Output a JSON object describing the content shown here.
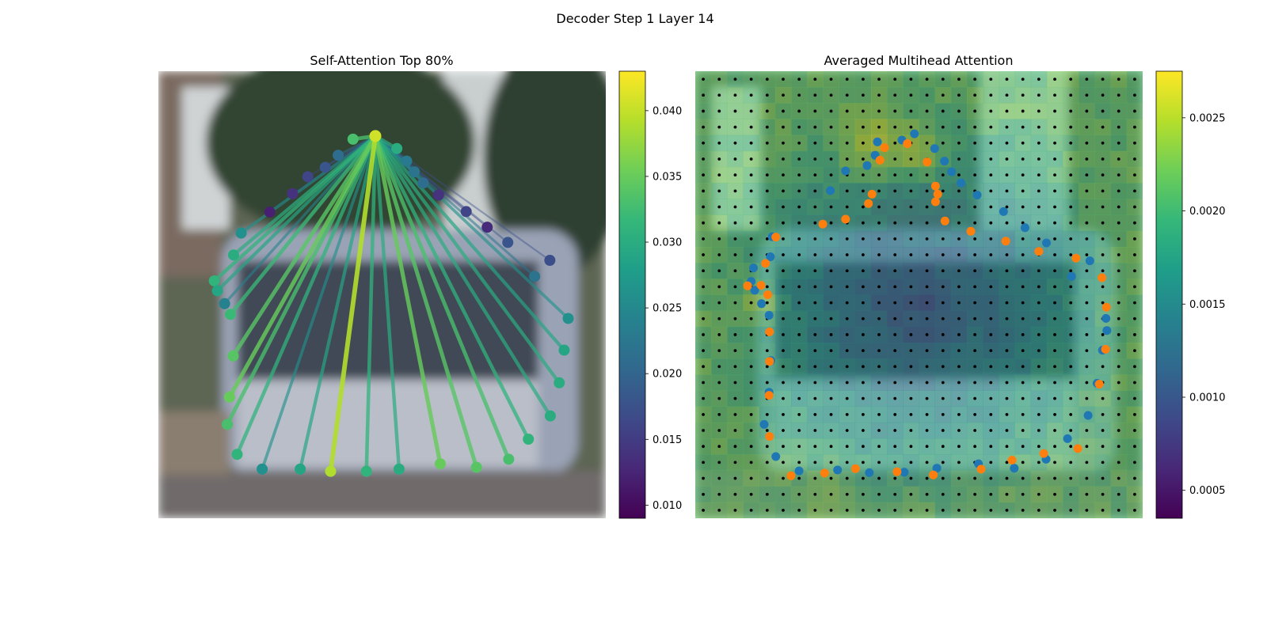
{
  "figure": {
    "suptitle": "Decoder Step 1 Layer 14"
  },
  "colors": {
    "viridis": [
      "#440154",
      "#482878",
      "#3e4a89",
      "#31688e",
      "#26828e",
      "#1f9e89",
      "#35b779",
      "#6ece58",
      "#b5de2b",
      "#fde725"
    ],
    "series_blue": "#1f77b4",
    "series_orange": "#ff7f0e",
    "grid_dot": "#000000"
  },
  "chart_data": [
    {
      "type": "scatter",
      "title": "Self-Attention Top 80%",
      "background": "blurred photo of a tram on a city street",
      "query_point": {
        "x": 0.485,
        "y": 0.145
      },
      "colorbar": {
        "range": [
          0.009,
          0.043
        ],
        "ticks": [
          "0.010",
          "0.015",
          "0.020",
          "0.025",
          "0.030",
          "0.035",
          "0.040"
        ],
        "tick_values": [
          0.01,
          0.015,
          0.02,
          0.025,
          0.03,
          0.035,
          0.04
        ]
      },
      "points": [
        {
          "x": 0.435,
          "y": 0.152,
          "w": 0.033
        },
        {
          "x": 0.402,
          "y": 0.188,
          "w": 0.021
        },
        {
          "x": 0.373,
          "y": 0.215,
          "w": 0.018
        },
        {
          "x": 0.334,
          "y": 0.236,
          "w": 0.016
        },
        {
          "x": 0.3,
          "y": 0.274,
          "w": 0.014
        },
        {
          "x": 0.249,
          "y": 0.315,
          "w": 0.012
        },
        {
          "x": 0.185,
          "y": 0.362,
          "w": 0.026
        },
        {
          "x": 0.168,
          "y": 0.411,
          "w": 0.03
        },
        {
          "x": 0.125,
          "y": 0.469,
          "w": 0.031
        },
        {
          "x": 0.132,
          "y": 0.491,
          "w": 0.029
        },
        {
          "x": 0.148,
          "y": 0.52,
          "w": 0.024
        },
        {
          "x": 0.161,
          "y": 0.544,
          "w": 0.032
        },
        {
          "x": 0.167,
          "y": 0.637,
          "w": 0.034
        },
        {
          "x": 0.159,
          "y": 0.729,
          "w": 0.035
        },
        {
          "x": 0.154,
          "y": 0.79,
          "w": 0.033
        },
        {
          "x": 0.176,
          "y": 0.857,
          "w": 0.031
        },
        {
          "x": 0.232,
          "y": 0.89,
          "w": 0.026
        },
        {
          "x": 0.317,
          "y": 0.89,
          "w": 0.029
        },
        {
          "x": 0.385,
          "y": 0.895,
          "w": 0.039
        },
        {
          "x": 0.465,
          "y": 0.895,
          "w": 0.031
        },
        {
          "x": 0.538,
          "y": 0.89,
          "w": 0.03
        },
        {
          "x": 0.63,
          "y": 0.878,
          "w": 0.035
        },
        {
          "x": 0.711,
          "y": 0.886,
          "w": 0.034
        },
        {
          "x": 0.783,
          "y": 0.868,
          "w": 0.033
        },
        {
          "x": 0.827,
          "y": 0.823,
          "w": 0.031
        },
        {
          "x": 0.876,
          "y": 0.771,
          "w": 0.03
        },
        {
          "x": 0.896,
          "y": 0.697,
          "w": 0.03
        },
        {
          "x": 0.907,
          "y": 0.624,
          "w": 0.029
        },
        {
          "x": 0.916,
          "y": 0.553,
          "w": 0.026
        },
        {
          "x": 0.875,
          "y": 0.423,
          "w": 0.017
        },
        {
          "x": 0.841,
          "y": 0.459,
          "w": 0.022
        },
        {
          "x": 0.781,
          "y": 0.383,
          "w": 0.018
        },
        {
          "x": 0.735,
          "y": 0.349,
          "w": 0.013
        },
        {
          "x": 0.688,
          "y": 0.314,
          "w": 0.016
        },
        {
          "x": 0.626,
          "y": 0.277,
          "w": 0.014
        },
        {
          "x": 0.592,
          "y": 0.25,
          "w": 0.021
        },
        {
          "x": 0.572,
          "y": 0.225,
          "w": 0.022
        },
        {
          "x": 0.555,
          "y": 0.201,
          "w": 0.023
        },
        {
          "x": 0.533,
          "y": 0.173,
          "w": 0.03
        }
      ]
    },
    {
      "type": "heatmap",
      "title": "Averaged Multihead Attention",
      "background": "blurred photo of a tram on a city street",
      "grid": {
        "cols": 28,
        "rows": 28
      },
      "colorbar": {
        "range": [
          0.00035,
          0.00275
        ],
        "ticks": [
          "0.0005",
          "0.0010",
          "0.0015",
          "0.0020",
          "0.0025"
        ],
        "tick_values": [
          0.0005,
          0.001,
          0.0015,
          0.002,
          0.0025
        ]
      },
      "hotspots": [
        {
          "x": 0.4,
          "y": 0.16,
          "r": 0.12,
          "v": 0.00265
        },
        {
          "x": 0.5,
          "y": 0.18,
          "r": 0.08,
          "v": 0.0026
        },
        {
          "x": 0.14,
          "y": 0.52,
          "r": 0.07,
          "v": 0.0025
        },
        {
          "x": 0.3,
          "y": 0.96,
          "r": 0.1,
          "v": 0.0023
        },
        {
          "x": 0.2,
          "y": 0.02,
          "r": 0.1,
          "v": 0.0021
        },
        {
          "x": 0.03,
          "y": 0.12,
          "r": 0.05,
          "v": 0.0022
        }
      ],
      "series": [
        {
          "color": "blue",
          "points": [
            [
              0.462,
              0.154
            ],
            [
              0.407,
              0.158
            ],
            [
              0.402,
              0.188
            ],
            [
              0.384,
              0.211
            ],
            [
              0.336,
              0.223
            ],
            [
              0.302,
              0.267
            ],
            [
              0.168,
              0.415
            ],
            [
              0.172,
              0.37
            ],
            [
              0.125,
              0.47
            ],
            [
              0.133,
              0.49
            ],
            [
              0.148,
              0.52
            ],
            [
              0.165,
              0.546
            ],
            [
              0.169,
              0.647
            ],
            [
              0.165,
              0.718
            ],
            [
              0.154,
              0.79
            ],
            [
              0.18,
              0.862
            ],
            [
              0.232,
              0.894
            ],
            [
              0.318,
              0.892
            ],
            [
              0.389,
              0.898
            ],
            [
              0.467,
              0.897
            ],
            [
              0.54,
              0.888
            ],
            [
              0.633,
              0.878
            ],
            [
              0.713,
              0.888
            ],
            [
              0.784,
              0.868
            ],
            [
              0.832,
              0.822
            ],
            [
              0.878,
              0.77
            ],
            [
              0.898,
              0.698
            ],
            [
              0.91,
              0.624
            ],
            [
              0.918,
              0.553
            ],
            [
              0.882,
              0.424
            ],
            [
              0.841,
              0.459
            ],
            [
              0.785,
              0.384
            ],
            [
              0.737,
              0.35
            ],
            [
              0.689,
              0.314
            ],
            [
              0.63,
              0.277
            ],
            [
              0.594,
              0.25
            ],
            [
              0.573,
              0.225
            ],
            [
              0.557,
              0.201
            ],
            [
              0.535,
              0.173
            ],
            [
              0.92,
              0.58
            ],
            [
              0.49,
              0.14
            ],
            [
              0.13,
              0.44
            ]
          ]
        },
        {
          "color": "orange",
          "points": [
            [
              0.474,
              0.162
            ],
            [
              0.423,
              0.171
            ],
            [
              0.413,
              0.199
            ],
            [
              0.395,
              0.275
            ],
            [
              0.387,
              0.296
            ],
            [
              0.336,
              0.331
            ],
            [
              0.285,
              0.342
            ],
            [
              0.18,
              0.371
            ],
            [
              0.157,
              0.43
            ],
            [
              0.117,
              0.48
            ],
            [
              0.147,
              0.479
            ],
            [
              0.162,
              0.5
            ],
            [
              0.166,
              0.583
            ],
            [
              0.166,
              0.649
            ],
            [
              0.165,
              0.725
            ],
            [
              0.166,
              0.817
            ],
            [
              0.214,
              0.905
            ],
            [
              0.289,
              0.899
            ],
            [
              0.358,
              0.889
            ],
            [
              0.451,
              0.896
            ],
            [
              0.532,
              0.903
            ],
            [
              0.639,
              0.89
            ],
            [
              0.708,
              0.87
            ],
            [
              0.779,
              0.855
            ],
            [
              0.855,
              0.844
            ],
            [
              0.903,
              0.7
            ],
            [
              0.917,
              0.622
            ],
            [
              0.919,
              0.528
            ],
            [
              0.909,
              0.462
            ],
            [
              0.851,
              0.418
            ],
            [
              0.768,
              0.403
            ],
            [
              0.694,
              0.38
            ],
            [
              0.616,
              0.358
            ],
            [
              0.558,
              0.335
            ],
            [
              0.537,
              0.292
            ],
            [
              0.542,
              0.275
            ],
            [
              0.537,
              0.257
            ],
            [
              0.518,
              0.203
            ]
          ]
        }
      ]
    }
  ]
}
